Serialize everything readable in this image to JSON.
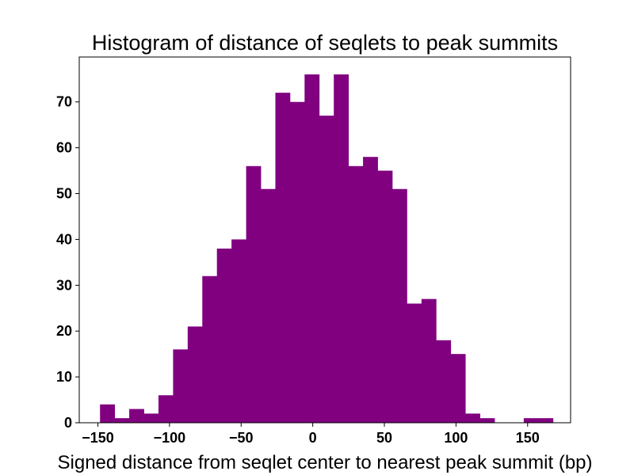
{
  "chart_data": {
    "type": "bar",
    "subtype": "histogram",
    "title": "Histogram of distance of seqlets to peak summits",
    "xlabel": "Signed distance from seqlet center to nearest peak summit (bp)",
    "ylabel": "",
    "bin_width": 10.2,
    "bin_starts": [
      -148.5,
      -138.3,
      -128.1,
      -117.9,
      -107.7,
      -97.5,
      -87.3,
      -77.1,
      -66.9,
      -56.7,
      -46.5,
      -36.3,
      -26.1,
      -15.9,
      -5.7,
      4.5,
      14.7,
      24.9,
      35.1,
      45.3,
      55.5,
      65.7,
      75.9,
      86.1,
      96.3,
      106.5,
      116.7,
      126.9,
      137.1,
      147.3,
      157.5
    ],
    "values": [
      4,
      1,
      3,
      2,
      6,
      16,
      21,
      32,
      38,
      40,
      56,
      51,
      72,
      70,
      76,
      67,
      76,
      56,
      58,
      55,
      51,
      26,
      27,
      18,
      15,
      2,
      1,
      0,
      0,
      1,
      1
    ],
    "xlim": [
      -163,
      180
    ],
    "ylim": [
      0,
      79.8
    ],
    "xticks": [
      -150,
      -100,
      -50,
      0,
      50,
      100,
      150
    ],
    "yticks": [
      0,
      10,
      20,
      30,
      40,
      50,
      60,
      70
    ],
    "bar_color": "#800080",
    "grid": false,
    "legend": false
  }
}
